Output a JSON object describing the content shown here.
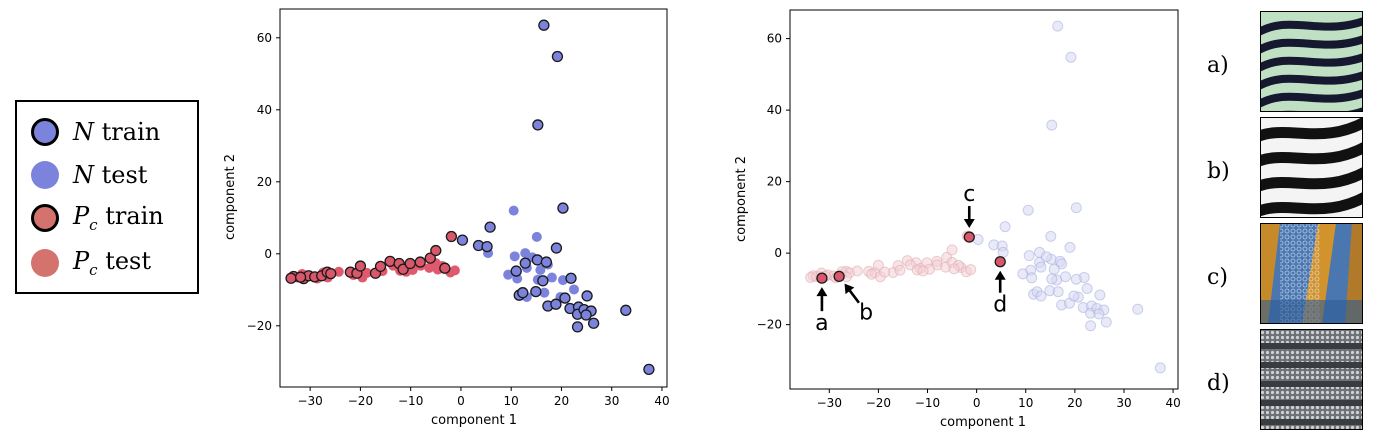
{
  "legend": {
    "entries": [
      {
        "symbol": "N",
        "subscript": "",
        "word": "train",
        "color": "#7b83dc",
        "edge": true
      },
      {
        "symbol": "N",
        "subscript": "",
        "word": "test",
        "color": "#7b83dc",
        "edge": false
      },
      {
        "symbol": "P",
        "subscript": "c",
        "word": "train",
        "color": "#d4736e",
        "edge": true
      },
      {
        "symbol": "P",
        "subscript": "c",
        "word": "test",
        "color": "#d4736e",
        "edge": false
      }
    ]
  },
  "colors": {
    "N": "#7b83dc",
    "Pc_train": "#d9576a",
    "Pc_test": "#e05a6e",
    "edge": "#1a1a1a",
    "axis": "#000000"
  },
  "chart_data": [
    {
      "type": "scatter",
      "title": "",
      "xlabel": "component 1",
      "ylabel": "component 2",
      "xlim": [
        -36,
        41
      ],
      "ylim": [
        -37,
        68
      ],
      "xticks": [
        -30,
        -20,
        -10,
        0,
        10,
        20,
        30,
        40
      ],
      "yticks": [
        -20,
        0,
        20,
        40,
        60
      ],
      "grid": false,
      "series": [
        {
          "class": "N",
          "split": "train",
          "points": [
            [
              16.5,
              63.5
            ],
            [
              19.2,
              54.8
            ],
            [
              15.3,
              35.8
            ],
            [
              20.3,
              12.7
            ],
            [
              0.3,
              3.8
            ],
            [
              3.5,
              2.3
            ],
            [
              5.2,
              2.0
            ],
            [
              5.8,
              7.4
            ],
            [
              19.0,
              1.6
            ],
            [
              15.2,
              -1.7
            ],
            [
              17.0,
              -2.3
            ],
            [
              12.8,
              -2.6
            ],
            [
              11.0,
              -4.8
            ],
            [
              21.9,
              -6.8
            ],
            [
              16.3,
              -7.5
            ],
            [
              11.6,
              -11.5
            ],
            [
              14.9,
              -10.5
            ],
            [
              12.3,
              -10.8
            ],
            [
              17.3,
              -14.5
            ],
            [
              20.7,
              -12.3
            ],
            [
              18.9,
              -14.0
            ],
            [
              21.7,
              -15.2
            ],
            [
              23.4,
              -14.8
            ],
            [
              25.1,
              -11.7
            ],
            [
              23.2,
              -16.8
            ],
            [
              24.5,
              -15.5
            ],
            [
              25.9,
              -15.9
            ],
            [
              26.4,
              -19.3
            ],
            [
              23.2,
              -20.3
            ],
            [
              24.9,
              -17.0
            ],
            [
              32.8,
              -15.7
            ],
            [
              37.4,
              -32.1
            ]
          ]
        },
        {
          "class": "N",
          "split": "test",
          "points": [
            [
              10.5,
              12.0
            ],
            [
              5.4,
              0.2
            ],
            [
              10.7,
              -0.7
            ],
            [
              12.8,
              0.2
            ],
            [
              14.2,
              -1.0
            ],
            [
              9.4,
              -5.8
            ],
            [
              11.2,
              -6.9
            ],
            [
              13.1,
              -3.9
            ],
            [
              17.3,
              -3.0
            ],
            [
              15.8,
              -4.5
            ],
            [
              15.3,
              -7.2
            ],
            [
              18.1,
              -6.6
            ],
            [
              20.3,
              -7.3
            ],
            [
              15.1,
              4.7
            ],
            [
              22.5,
              -9.9
            ],
            [
              13.1,
              -12.0
            ],
            [
              16.6,
              -10.8
            ],
            [
              19.8,
              -12.0
            ]
          ]
        },
        {
          "class": "Pc",
          "split": "train",
          "points": [
            [
              -33.3,
              -6.3
            ],
            [
              -31.3,
              -6.9
            ],
            [
              -30.3,
              -6.1
            ],
            [
              -29.1,
              -6.4
            ],
            [
              -27.7,
              -6.1
            ],
            [
              -26.6,
              -5.1
            ],
            [
              -25.9,
              -5.5
            ],
            [
              -22.0,
              -5.1
            ],
            [
              -20.7,
              -5.4
            ],
            [
              -20.0,
              -3.4
            ],
            [
              -17.0,
              -5.4
            ],
            [
              -16.0,
              -3.5
            ],
            [
              -14.1,
              -2.1
            ],
            [
              -12.3,
              -2.7
            ],
            [
              -11.5,
              -4.3
            ],
            [
              -10.1,
              -2.7
            ],
            [
              -8.1,
              -2.3
            ],
            [
              -6.1,
              -1.2
            ],
            [
              -5.0,
              0.9
            ],
            [
              -3.2,
              -4.0
            ],
            [
              -1.9,
              4.8
            ],
            [
              -33.8,
              -6.8
            ],
            [
              -31.9,
              -6.5
            ]
          ]
        },
        {
          "class": "Pc",
          "split": "test",
          "points": [
            [
              -32.6,
              -6.6
            ],
            [
              -31.6,
              -5.6
            ],
            [
              -30.8,
              -6.5
            ],
            [
              -28.6,
              -6.9
            ],
            [
              -27.4,
              -5.2
            ],
            [
              -26.5,
              -6.6
            ],
            [
              -24.3,
              -5.0
            ],
            [
              -21.4,
              -5.9
            ],
            [
              -19.6,
              -6.6
            ],
            [
              -18.7,
              -5.3
            ],
            [
              -15.6,
              -4.8
            ],
            [
              -13.5,
              -3.3
            ],
            [
              -12.1,
              -4.7
            ],
            [
              -9.6,
              -4.5
            ],
            [
              -8.0,
              -3.3
            ],
            [
              -6.3,
              -3.9
            ],
            [
              -5.0,
              -2.6
            ],
            [
              -3.7,
              -3.4
            ],
            [
              -2.1,
              -5.2
            ],
            [
              -1.2,
              -4.6
            ],
            [
              -4.6,
              -4.4
            ],
            [
              -10.9,
              -5.0
            ]
          ]
        }
      ]
    },
    {
      "type": "scatter",
      "title": "",
      "xlabel": "component 1",
      "ylabel": "component 2",
      "xlim": [
        -38,
        41
      ],
      "ylim": [
        -38,
        68
      ],
      "xticks": [
        -30,
        -20,
        -10,
        0,
        10,
        20,
        30,
        40
      ],
      "yticks": [
        -20,
        0,
        20,
        40,
        60
      ],
      "grid": false,
      "highlighted": [
        {
          "label": "a",
          "x": -31.5,
          "y": -7.0
        },
        {
          "label": "b",
          "x": -28.0,
          "y": -6.5
        },
        {
          "label": "c",
          "x": -1.5,
          "y": 4.5
        },
        {
          "label": "d",
          "x": 4.8,
          "y": -2.4
        }
      ]
    }
  ],
  "thumbnails": [
    {
      "label": "a)",
      "texture": "zebra-light-stripes"
    },
    {
      "label": "b)",
      "texture": "zebra-dark-stripes"
    },
    {
      "label": "c)",
      "texture": "fish-scales-orange-blue"
    },
    {
      "label": "d)",
      "texture": "grey-scale-rows"
    }
  ]
}
